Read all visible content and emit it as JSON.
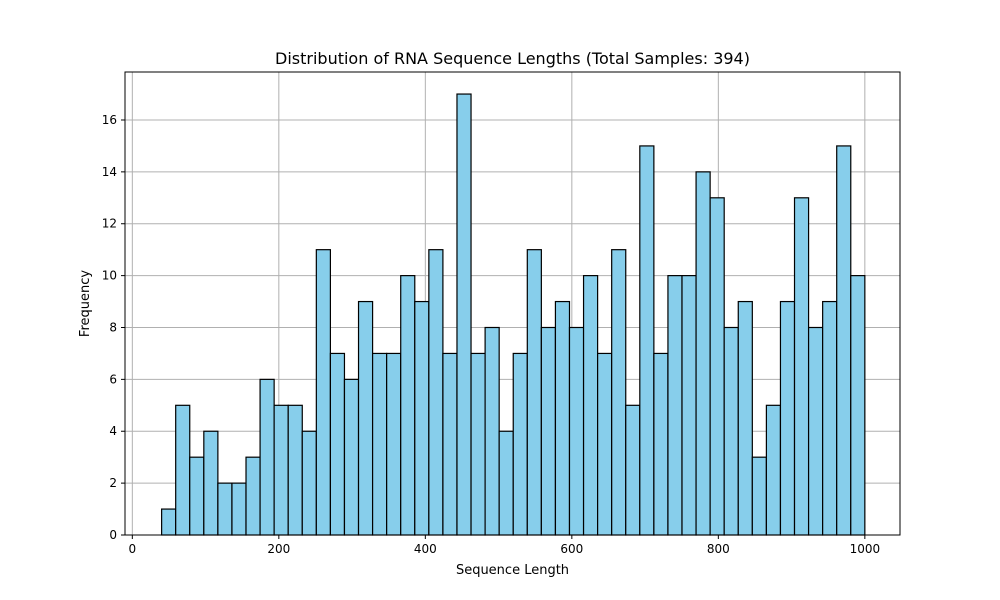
{
  "chart_data": {
    "type": "bar",
    "title": "Distribution of RNA Sequence Lengths (Total Samples: 394)",
    "xlabel": "Sequence Length",
    "ylabel": "Frequency",
    "xlim": [
      -10,
      1048
    ],
    "ylim": [
      0,
      17.85
    ],
    "xticks": [
      0,
      200,
      400,
      600,
      800,
      1000
    ],
    "yticks": [
      0,
      2,
      4,
      6,
      8,
      10,
      12,
      14,
      16
    ],
    "grid": true,
    "bar_color": "#87ceeb",
    "edge_color": "#000000",
    "bin_edges": [
      40,
      59.2,
      78.4,
      97.6,
      116.8,
      136,
      155.2,
      174.4,
      193.6,
      212.8,
      232,
      251.2,
      270.4,
      289.6,
      308.8,
      328,
      347.2,
      366.4,
      385.6,
      404.8,
      424,
      443.2,
      462.4,
      481.6,
      500.8,
      520,
      539.2,
      558.4,
      577.6,
      596.8,
      616,
      635.2,
      654.4,
      673.6,
      692.8,
      712,
      731.2,
      750.4,
      769.6,
      788.8,
      808,
      827.2,
      846.4,
      865.6,
      884.8,
      904,
      923.2,
      942.4,
      961.6,
      980.8,
      1000
    ],
    "values": [
      1,
      5,
      3,
      4,
      2,
      2,
      3,
      6,
      5,
      5,
      4,
      11,
      7,
      6,
      9,
      7,
      7,
      10,
      9,
      11,
      7,
      17,
      7,
      8,
      4,
      7,
      11,
      8,
      9,
      8,
      10,
      7,
      11,
      5,
      15,
      7,
      10,
      10,
      14,
      13,
      8,
      9,
      3,
      5,
      9,
      13,
      8,
      9,
      15,
      10
    ]
  }
}
